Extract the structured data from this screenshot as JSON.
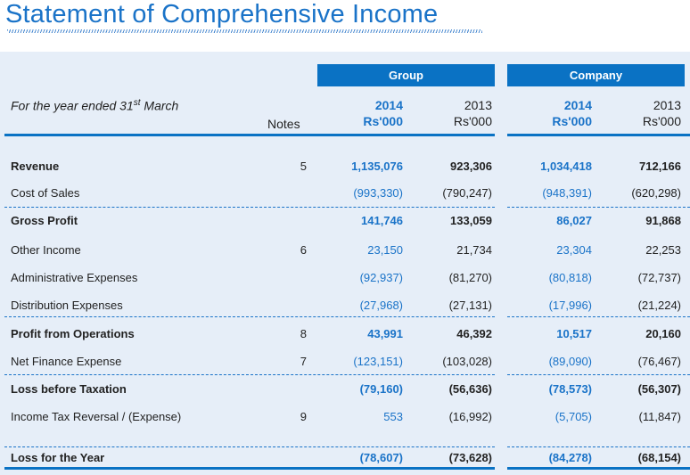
{
  "title": "Statement of Comprehensive Income",
  "header": {
    "period_prefix": "For the year ended 31",
    "period_sup": "st",
    "period_suffix": " March",
    "notes": "Notes",
    "group": "Group",
    "company": "Company",
    "years": [
      "2014",
      "2013",
      "2014",
      "2013"
    ],
    "units": [
      "Rs'000",
      "Rs'000",
      "Rs'000",
      "Rs'000"
    ]
  },
  "colors": {
    "accent": "#0a72c4",
    "panel": "#e6eef8",
    "current_year": "#1a73c8"
  },
  "rows": [
    {
      "label": "Revenue",
      "note": "5",
      "values": [
        "1,135,076",
        "923,306",
        "1,034,418",
        "712,166"
      ],
      "bold": true
    },
    {
      "label": "Cost of Sales",
      "note": "",
      "values": [
        "(993,330)",
        "(790,247)",
        "(948,391)",
        "(620,298)"
      ],
      "bold": false
    },
    {
      "label": "Gross Profit",
      "note": "",
      "values": [
        "141,746",
        "133,059",
        "86,027",
        "91,868"
      ],
      "bold": true
    },
    {
      "label": "Other Income",
      "note": "6",
      "values": [
        "23,150",
        "21,734",
        "23,304",
        "22,253"
      ],
      "bold": false
    },
    {
      "label": "Administrative Expenses",
      "note": "",
      "values": [
        "(92,937)",
        "(81,270)",
        "(80,818)",
        "(72,737)"
      ],
      "bold": false
    },
    {
      "label": "Distribution Expenses",
      "note": "",
      "values": [
        "(27,968)",
        "(27,131)",
        "(17,996)",
        "(21,224)"
      ],
      "bold": false
    },
    {
      "label": "Profit from Operations",
      "note": "8",
      "values": [
        "43,991",
        "46,392",
        "10,517",
        "20,160"
      ],
      "bold": true
    },
    {
      "label": "Net Finance Expense",
      "note": "7",
      "values": [
        "(123,151)",
        "(103,028)",
        "(89,090)",
        "(76,467)"
      ],
      "bold": false
    },
    {
      "label": "Loss before Taxation",
      "note": "",
      "values": [
        "(79,160)",
        "(56,636)",
        "(78,573)",
        "(56,307)"
      ],
      "bold": true
    },
    {
      "label": "Income Tax Reversal / (Expense)",
      "note": "9",
      "values": [
        "553",
        "(16,992)",
        "(5,705)",
        "(11,847)"
      ],
      "bold": false
    },
    {
      "label": "Loss for the Year",
      "note": "",
      "values": [
        "(78,607)",
        "(73,628)",
        "(84,278)",
        "(68,154)"
      ],
      "bold": true
    }
  ]
}
